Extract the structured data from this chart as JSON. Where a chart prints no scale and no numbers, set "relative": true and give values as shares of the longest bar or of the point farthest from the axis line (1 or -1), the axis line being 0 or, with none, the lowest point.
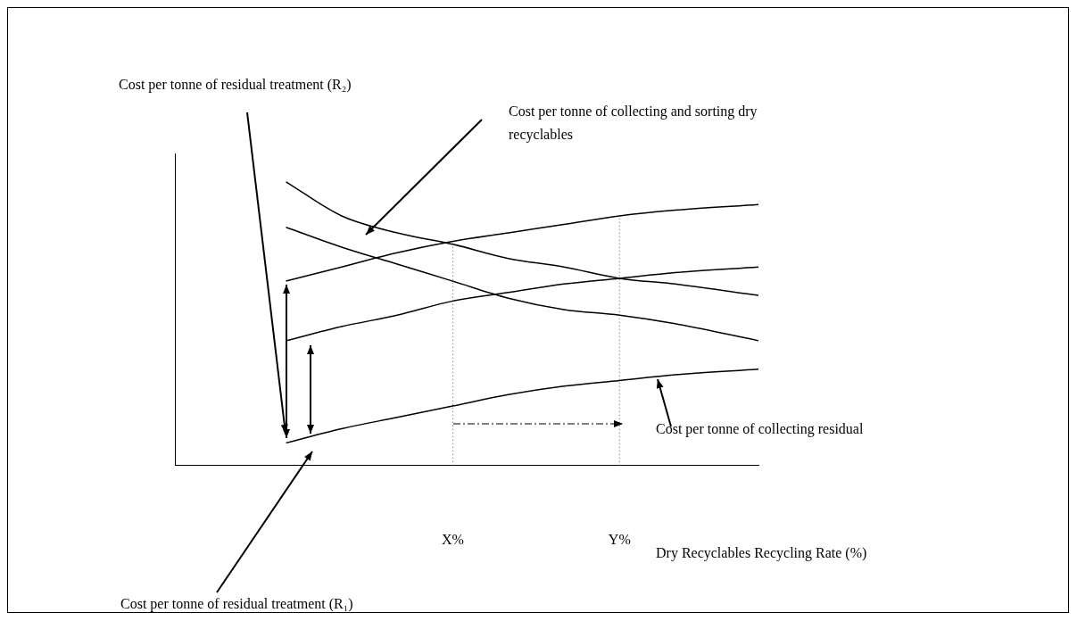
{
  "chart_data": {
    "type": "line",
    "relative": true,
    "categories": [
      null,
      null,
      null,
      null,
      null,
      null,
      null,
      null,
      null,
      null,
      "X%",
      null,
      null,
      null,
      null,
      null,
      "Y%",
      null,
      null,
      null,
      null,
      null
    ],
    "series": [
      {
        "color": "#000000",
        "values": [
          null,
          null,
          null,
          null,
          1.0,
          null,
          0.88,
          null,
          0.82,
          null,
          0.78,
          null,
          0.73,
          null,
          0.7,
          null,
          0.66,
          null,
          0.64,
          null,
          null,
          0.6
        ]
      },
      {
        "color": "#000000",
        "values": [
          null,
          null,
          null,
          null,
          0.65,
          null,
          0.7,
          null,
          0.75,
          null,
          0.79,
          null,
          0.82,
          null,
          0.85,
          null,
          0.88,
          null,
          0.9,
          null,
          null,
          0.92
        ]
      },
      {
        "color": "#000000",
        "values": [
          null,
          null,
          null,
          null,
          0.84,
          null,
          0.77,
          null,
          0.71,
          null,
          0.65,
          null,
          0.59,
          null,
          0.55,
          null,
          0.53,
          null,
          0.5,
          null,
          null,
          0.44
        ]
      },
      {
        "color": "#000000",
        "values": [
          null,
          null,
          null,
          null,
          0.44,
          null,
          0.49,
          null,
          0.53,
          null,
          0.58,
          null,
          0.61,
          null,
          0.64,
          null,
          0.66,
          null,
          0.68,
          null,
          null,
          0.7
        ]
      },
      {
        "color": "#000000",
        "values": [
          null,
          null,
          null,
          null,
          0.08,
          null,
          0.13,
          null,
          0.17,
          null,
          0.21,
          null,
          0.25,
          null,
          0.28,
          null,
          0.3,
          null,
          0.32,
          null,
          null,
          0.34
        ]
      }
    ],
    "ref_lines": [
      {
        "axis": "x",
        "value": "X%",
        "line_style": "dotted"
      },
      {
        "axis": "x",
        "value": "Y%",
        "line_style": "dotted"
      }
    ],
    "annotations": [
      "Cost per tonne of residual treatment (R₂)",
      "Cost per tonne of collecting and sorting dry recyclables",
      "Cost per tonne of collecting residual",
      "Cost per tonne of residual treatment (R₁)",
      "Dry Recyclables Recycling Rate (%)"
    ],
    "marker": "none",
    "line_style": "solid",
    "grid": false,
    "legend": false
  }
}
